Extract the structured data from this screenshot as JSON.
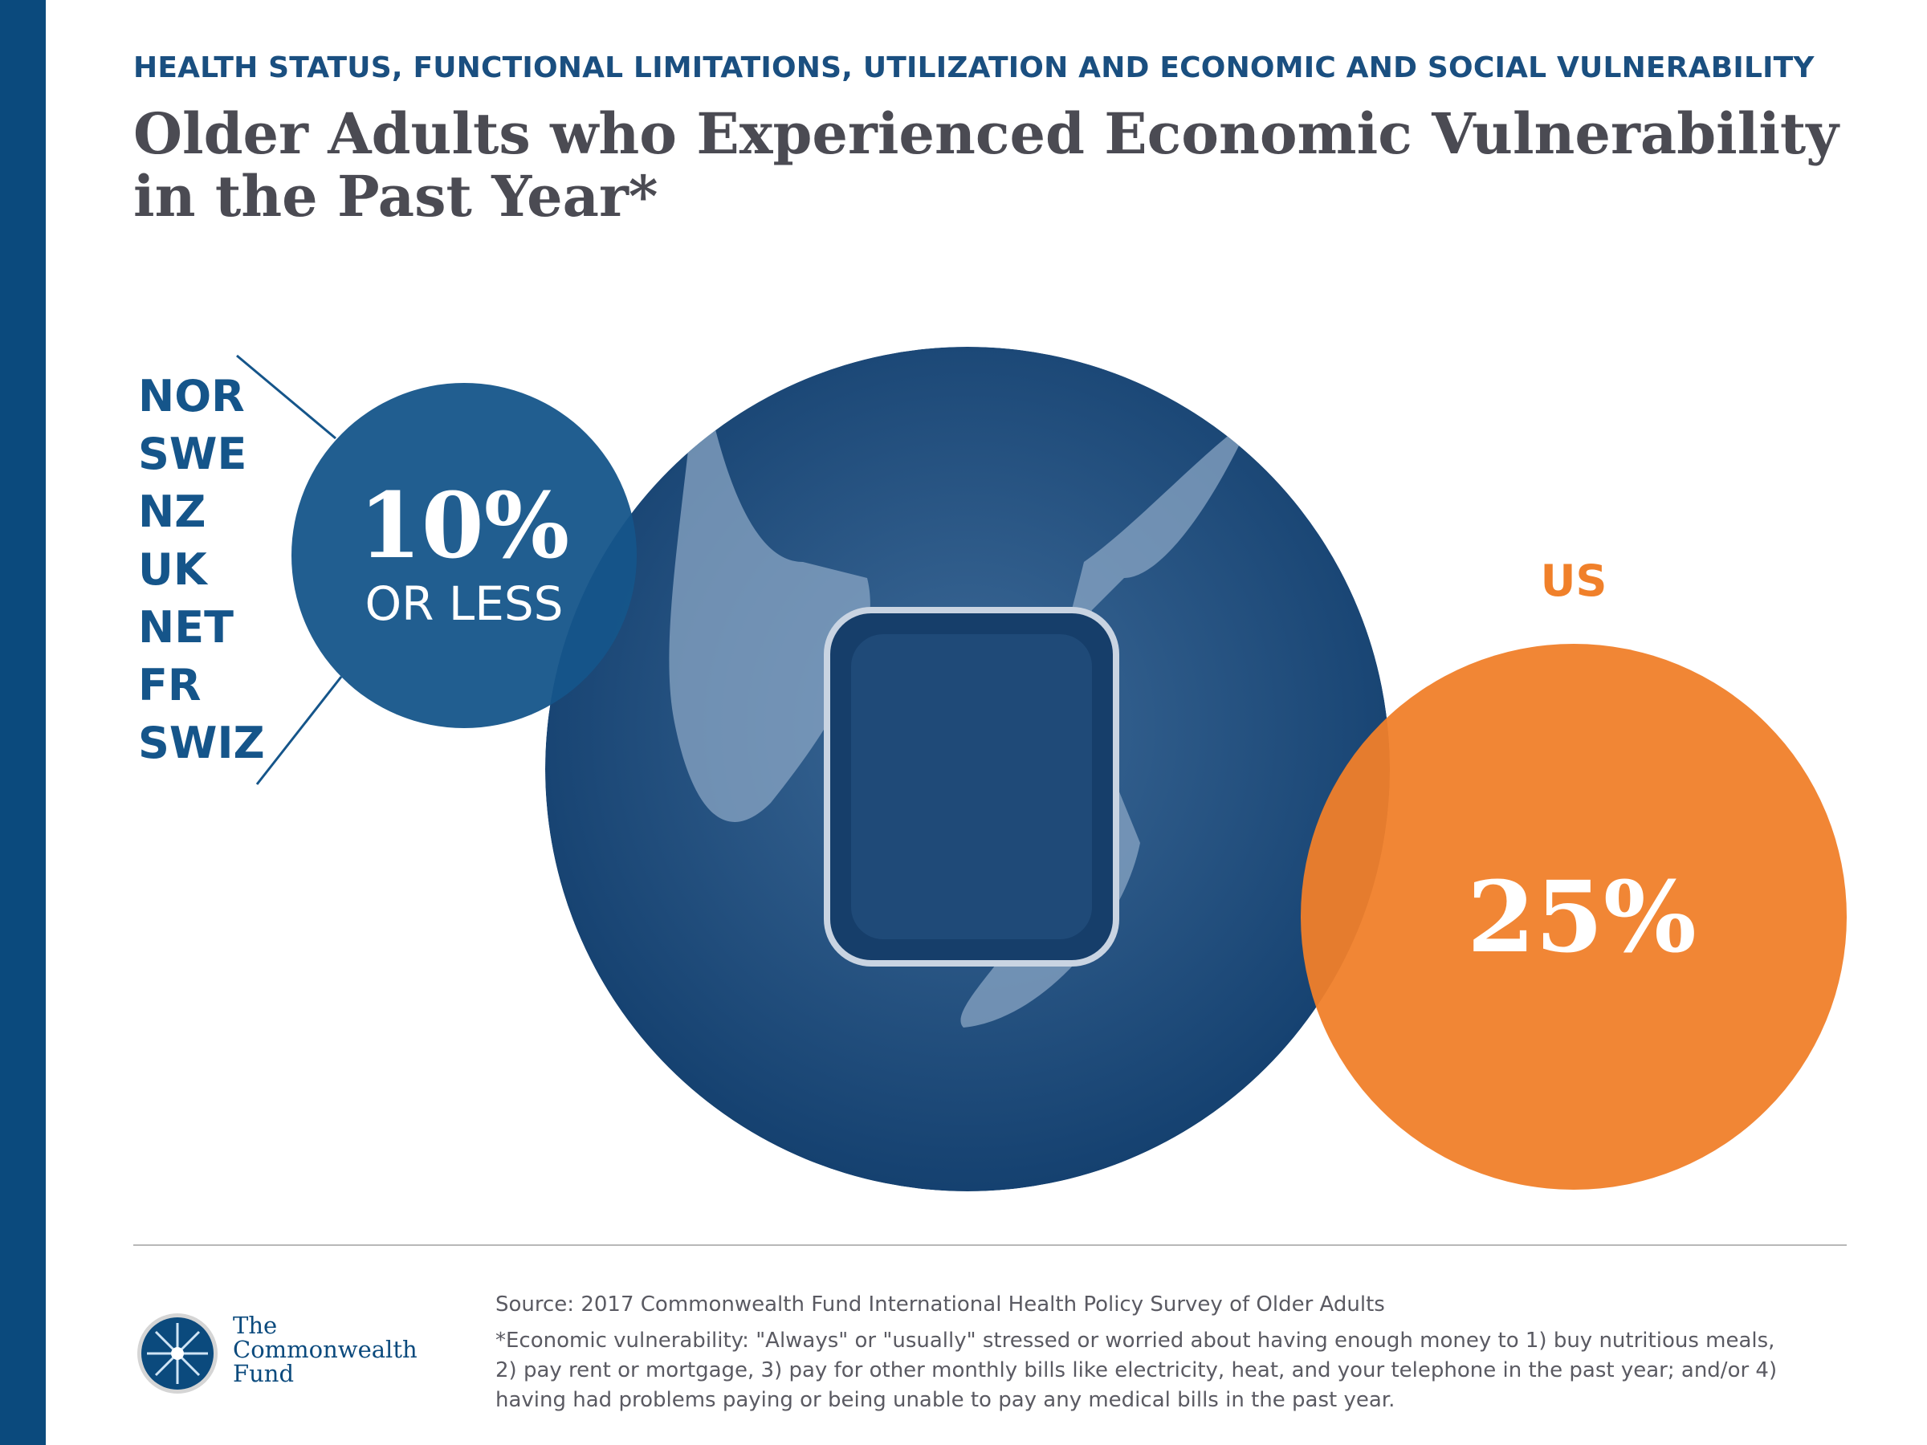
{
  "header": {
    "kicker": "HEALTH STATUS, FUNCTIONAL LIMITATIONS, UTILIZATION AND ECONOMIC AND SOCIAL VULNERABILITY",
    "title": "Older Adults who Experienced Economic Vulnerability in the Past Year*"
  },
  "low_group": {
    "countries": [
      "NOR",
      "SWE",
      "NZ",
      "UK",
      "NET",
      "FR",
      "SWIZ"
    ],
    "value": "10%",
    "qualifier": "OR LESS",
    "color": "#15558a"
  },
  "us_group": {
    "label": "US",
    "value": "25%",
    "color": "#f0802a"
  },
  "photo": {
    "icon": "hands-holding-empty-purse-photo"
  },
  "footer": {
    "source": "Source: 2017 Commonwealth Fund International Health Policy Survey of Older Adults",
    "footnote": "*Economic vulnerability: \"Always\" or \"usually\" stressed or worried about having enough money to 1) buy nutritious meals, 2) pay rent or mortgage, 3) pay for other monthly bills like electricity, heat, and your telephone in the past year; and/or 4) having had problems paying or being unable to pay any medical bills in the past year.",
    "logo_lines": [
      "The",
      "Commonwealth",
      "Fund"
    ]
  },
  "colors": {
    "brand_navy": "#0b4a7d",
    "accent_orange": "#f0802a"
  }
}
